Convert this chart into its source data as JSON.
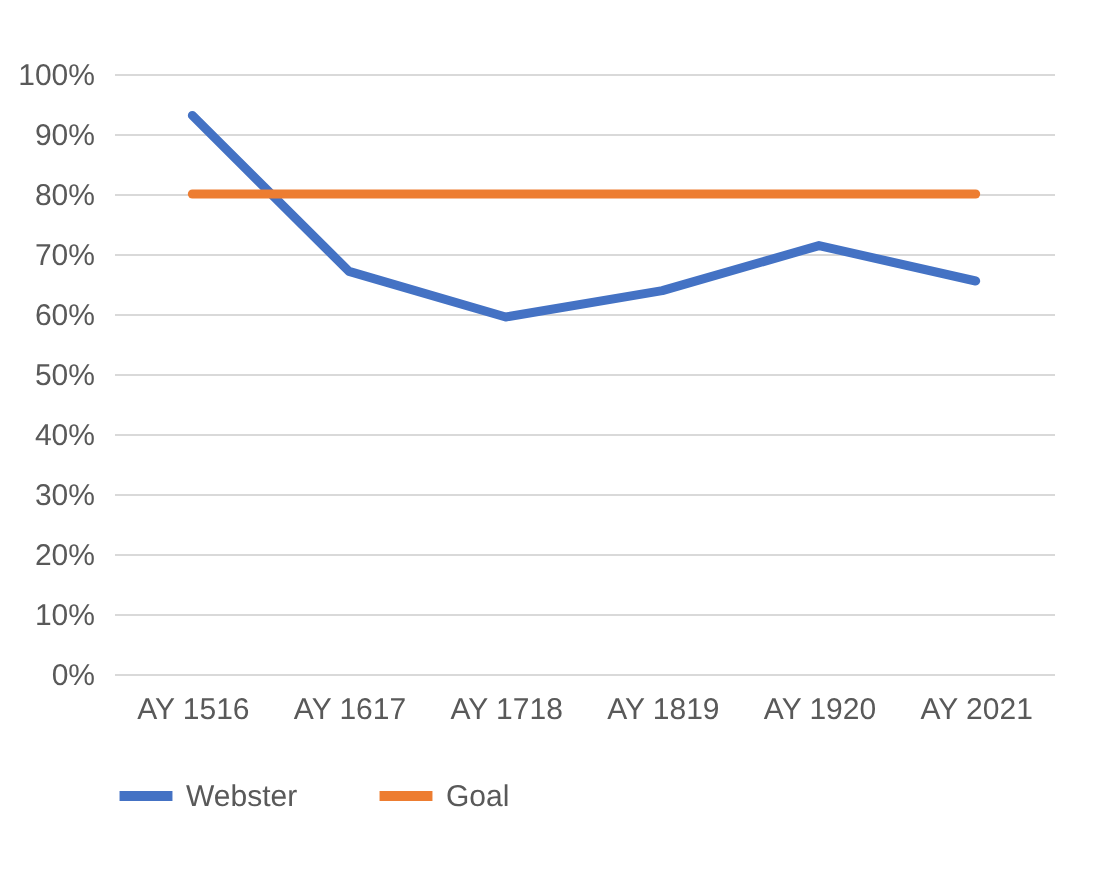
{
  "chart_data": {
    "type": "line",
    "categories": [
      "AY 1516",
      "AY 1617",
      "AY 1718",
      "AY 1819",
      "AY 1920",
      "AY 2021"
    ],
    "series": [
      {
        "name": "Webster",
        "color": "#4472c4",
        "values": [
          93.1,
          67.1,
          59.5,
          63.9,
          71.4,
          65.5
        ]
      },
      {
        "name": "Goal",
        "color": "#ed7d31",
        "values": [
          80,
          80,
          80,
          80,
          80,
          80
        ]
      }
    ],
    "ylim": [
      0,
      100
    ],
    "yticks": [
      {
        "value": 0,
        "label": "0%"
      },
      {
        "value": 10,
        "label": "10%"
      },
      {
        "value": 20,
        "label": "20%"
      },
      {
        "value": 30,
        "label": "30%"
      },
      {
        "value": 40,
        "label": "40%"
      },
      {
        "value": 50,
        "label": "50%"
      },
      {
        "value": 60,
        "label": "60%"
      },
      {
        "value": 70,
        "label": "70%"
      },
      {
        "value": 80,
        "label": "80%"
      },
      {
        "value": 90,
        "label": "90%"
      },
      {
        "value": 100,
        "label": "100%"
      }
    ],
    "grid": "y",
    "legend": "bottom",
    "marker": "none",
    "line_style": "solid"
  }
}
